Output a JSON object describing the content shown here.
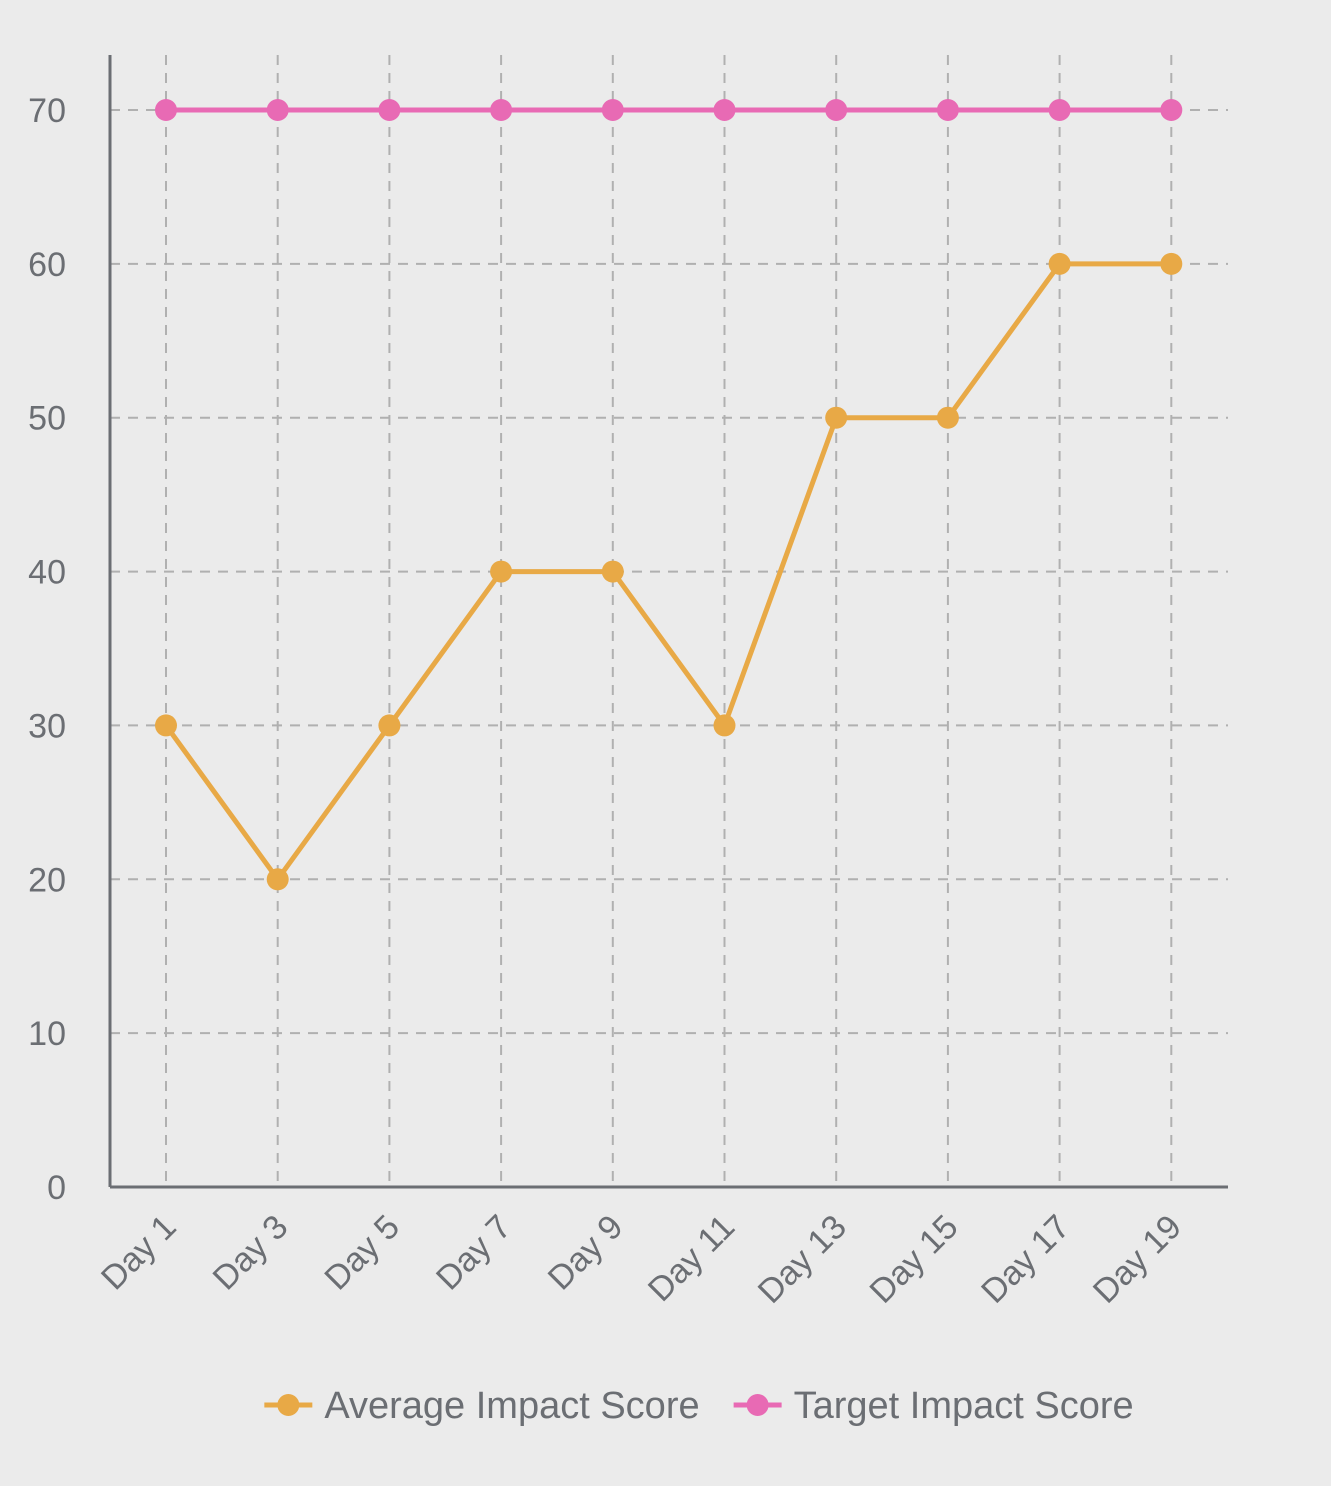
{
  "chart_data": {
    "type": "line",
    "categories": [
      "Day 1",
      "Day 3",
      "Day 5",
      "Day 7",
      "Day 9",
      "Day 11",
      "Day 13",
      "Day 15",
      "Day 17",
      "Day 19"
    ],
    "series": [
      {
        "name": "Average Impact Score",
        "values": [
          30,
          20,
          30,
          40,
          40,
          30,
          50,
          50,
          60,
          60
        ],
        "color": "#e8a946"
      },
      {
        "name": "Target Impact Score",
        "values": [
          70,
          70,
          70,
          70,
          70,
          70,
          70,
          70,
          70,
          70
        ],
        "color": "#e86ab4"
      }
    ],
    "y_ticks": [
      0,
      10,
      20,
      30,
      40,
      50,
      60,
      70
    ],
    "ylim": [
      0,
      70
    ],
    "grid": true,
    "legend_position": "bottom",
    "colors": {
      "background": "#ebebeb",
      "axis": "#6b6e73",
      "grid": "#b0b0b0",
      "text": "#6b6e73"
    }
  }
}
